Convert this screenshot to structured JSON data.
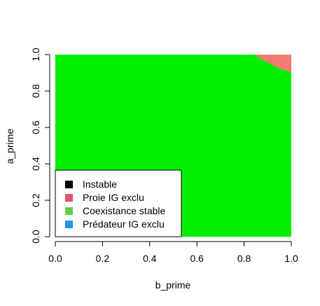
{
  "chart_data": {
    "type": "heatmap",
    "title": "",
    "xlabel": "b_prime",
    "ylabel": "a_prime",
    "xlim": [
      0,
      1
    ],
    "ylim": [
      0,
      1
    ],
    "x_ticks": [
      0.0,
      0.2,
      0.4,
      0.6,
      0.8,
      1.0
    ],
    "y_ticks": [
      0.0,
      0.2,
      0.4,
      0.6,
      0.8,
      1.0
    ],
    "x_tick_labels": [
      "0.0",
      "0.2",
      "0.4",
      "0.6",
      "0.8",
      "1.0"
    ],
    "y_tick_labels": [
      "0.0",
      "0.2",
      "0.4",
      "0.6",
      "0.8",
      "1.0"
    ],
    "grid": false,
    "background_region": {
      "label": "Coexistance stable",
      "color": "#00ee00"
    },
    "regions": [
      {
        "label": "Proie IG exclu",
        "color": "#f27c73",
        "polygon": [
          [
            0.84,
            1.0
          ],
          [
            1.0,
            1.0
          ],
          [
            1.0,
            0.905
          ],
          [
            0.97,
            0.915
          ],
          [
            0.94,
            0.93
          ],
          [
            0.91,
            0.95
          ],
          [
            0.88,
            0.97
          ],
          [
            0.86,
            0.985
          ]
        ]
      }
    ],
    "legend": {
      "position": "bottom-left",
      "entries": [
        {
          "label": "Instable",
          "color": "#000000"
        },
        {
          "label": "Proie IG exclu",
          "color": "#df536b"
        },
        {
          "label": "Coexistance stable",
          "color": "#61d04f"
        },
        {
          "label": "Prédateur IG exclu",
          "color": "#2297e6"
        }
      ]
    }
  }
}
